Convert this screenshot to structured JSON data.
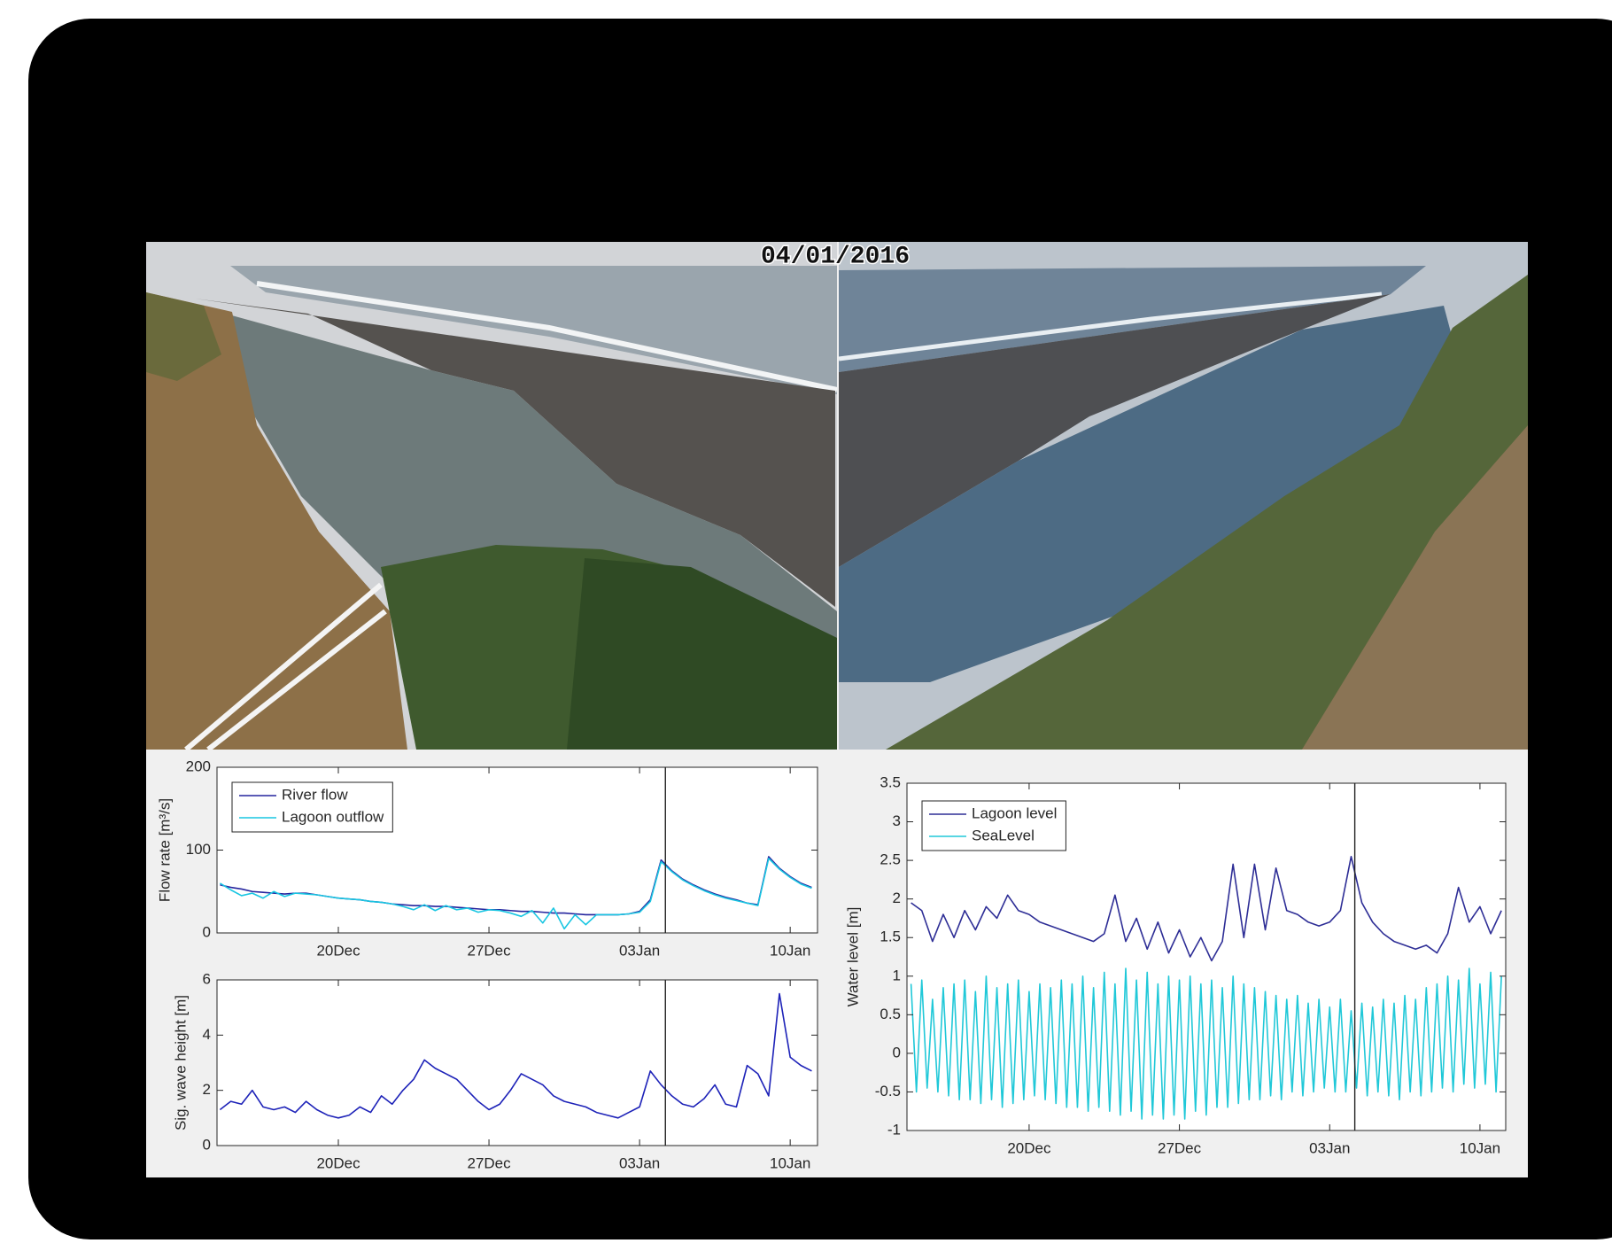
{
  "date_label": "04/01/2016",
  "chart_data": [
    {
      "type": "line",
      "ylabel": "Flow rate [m³/s]",
      "legend": "upper left",
      "xlim": [
        14.36,
        42.27
      ],
      "xticks": [
        {
          "value": 20,
          "label": "20Dec"
        },
        {
          "value": 27,
          "label": "27Dec"
        },
        {
          "value": 34,
          "label": "03Jan"
        },
        {
          "value": 41,
          "label": "10Jan"
        }
      ],
      "ylim": [
        0,
        200
      ],
      "yticks": [
        0,
        100,
        200
      ],
      "marker_x": 35.2,
      "x": [
        14.5,
        15,
        15.5,
        16,
        16.5,
        17,
        17.5,
        18,
        18.5,
        19,
        19.5,
        20,
        20.5,
        21,
        21.5,
        22,
        22.5,
        23,
        23.5,
        24,
        24.5,
        25,
        25.5,
        26,
        26.5,
        27,
        27.5,
        28,
        28.5,
        29,
        29.5,
        30,
        30.5,
        31,
        31.5,
        32,
        32.5,
        33,
        33.5,
        34,
        34.5,
        35,
        35.5,
        36,
        36.5,
        37,
        37.5,
        38,
        38.5,
        39,
        39.5,
        40,
        40.5,
        41,
        41.5,
        42
      ],
      "series": [
        {
          "name": "River flow",
          "color": "#25259e",
          "values": [
            58,
            55,
            53,
            50,
            49,
            48,
            47,
            48,
            48,
            46,
            44,
            42,
            41,
            40,
            38,
            37,
            35,
            34,
            33,
            33,
            32,
            32,
            31,
            30,
            29,
            28,
            28,
            27,
            26,
            26,
            25,
            24,
            24,
            23,
            22,
            22,
            22,
            22,
            23,
            26,
            40,
            88,
            75,
            65,
            58,
            52,
            47,
            43,
            40,
            36,
            34,
            92,
            78,
            68,
            60,
            55
          ]
        },
        {
          "name": "Lagoon outflow",
          "color": "#19c6e2",
          "values": [
            60,
            52,
            45,
            48,
            42,
            50,
            44,
            48,
            47,
            46,
            44,
            42,
            41,
            40,
            38,
            37,
            35,
            32,
            28,
            34,
            27,
            33,
            28,
            30,
            25,
            28,
            27,
            24,
            20,
            27,
            12,
            30,
            5,
            22,
            10,
            22,
            22,
            22,
            23,
            25,
            38,
            86,
            74,
            64,
            57,
            51,
            46,
            42,
            39,
            36,
            33,
            90,
            77,
            67,
            59,
            54
          ]
        }
      ]
    },
    {
      "type": "line",
      "ylabel": "Sig. wave height [m]",
      "xlim": [
        14.36,
        42.27
      ],
      "xticks": [
        {
          "value": 20,
          "label": "20Dec"
        },
        {
          "value": 27,
          "label": "27Dec"
        },
        {
          "value": 34,
          "label": "03Jan"
        },
        {
          "value": 41,
          "label": "10Jan"
        }
      ],
      "ylim": [
        0,
        6
      ],
      "yticks": [
        0,
        2,
        4,
        6
      ],
      "marker_x": 35.2,
      "x": [
        14.5,
        15,
        15.5,
        16,
        16.5,
        17,
        17.5,
        18,
        18.5,
        19,
        19.5,
        20,
        20.5,
        21,
        21.5,
        22,
        22.5,
        23,
        23.5,
        24,
        24.5,
        25,
        25.5,
        26,
        26.5,
        27,
        27.5,
        28,
        28.5,
        29,
        29.5,
        30,
        30.5,
        31,
        31.5,
        32,
        32.5,
        33,
        33.5,
        34,
        34.5,
        35,
        35.5,
        36,
        36.5,
        37,
        37.5,
        38,
        38.5,
        39,
        39.5,
        40,
        40.5,
        41,
        41.5,
        42
      ],
      "series": [
        {
          "color": "#1d22b8",
          "values": [
            1.3,
            1.6,
            1.5,
            2.0,
            1.4,
            1.3,
            1.4,
            1.2,
            1.6,
            1.3,
            1.1,
            1.0,
            1.1,
            1.4,
            1.2,
            1.8,
            1.5,
            2.0,
            2.4,
            3.1,
            2.8,
            2.6,
            2.4,
            2.0,
            1.6,
            1.3,
            1.5,
            2.0,
            2.6,
            2.4,
            2.2,
            1.8,
            1.6,
            1.5,
            1.4,
            1.2,
            1.1,
            1.0,
            1.2,
            1.4,
            2.7,
            2.2,
            1.8,
            1.5,
            1.4,
            1.7,
            2.2,
            1.5,
            1.4,
            2.9,
            2.6,
            1.8,
            5.5,
            3.2,
            2.9,
            2.7
          ]
        }
      ]
    },
    {
      "type": "line",
      "ylabel": "Water level [m]",
      "legend": "upper left",
      "xlim": [
        14.31,
        42.2
      ],
      "xticks": [
        {
          "value": 20,
          "label": "20Dec"
        },
        {
          "value": 27,
          "label": "27Dec"
        },
        {
          "value": 34,
          "label": "03Jan"
        },
        {
          "value": 41,
          "label": "10Jan"
        }
      ],
      "ylim": [
        -1,
        3.5
      ],
      "yticks": [
        -1,
        -0.5,
        0,
        0.5,
        1,
        1.5,
        2,
        2.5,
        3,
        3.5
      ],
      "marker_x": 35.17,
      "series": [
        {
          "name": "Lagoon level",
          "color": "#2e2e96",
          "x": [
            14.5,
            15,
            15.5,
            16,
            16.5,
            17,
            17.5,
            18,
            18.5,
            19,
            19.5,
            20,
            20.5,
            21,
            21.5,
            22,
            22.5,
            23,
            23.5,
            24,
            24.5,
            25,
            25.5,
            26,
            26.5,
            27,
            27.5,
            28,
            28.5,
            29,
            29.5,
            30,
            30.5,
            31,
            31.5,
            32,
            32.5,
            33,
            33.5,
            34,
            34.5,
            35,
            35.5,
            36,
            36.5,
            37,
            37.5,
            38,
            38.5,
            39,
            39.5,
            40,
            40.5,
            41,
            41.5,
            42
          ],
          "values": [
            1.95,
            1.85,
            1.45,
            1.8,
            1.5,
            1.85,
            1.6,
            1.9,
            1.75,
            2.05,
            1.85,
            1.8,
            1.7,
            1.65,
            1.6,
            1.55,
            1.5,
            1.45,
            1.55,
            2.05,
            1.45,
            1.75,
            1.35,
            1.7,
            1.3,
            1.6,
            1.25,
            1.5,
            1.2,
            1.45,
            2.45,
            1.5,
            2.45,
            1.6,
            2.4,
            1.85,
            1.8,
            1.7,
            1.65,
            1.7,
            1.85,
            2.55,
            1.95,
            1.7,
            1.55,
            1.45,
            1.4,
            1.35,
            1.4,
            1.3,
            1.55,
            2.15,
            1.7,
            1.9,
            1.55,
            1.85
          ]
        },
        {
          "name": "SeaLevel",
          "color": "#20c8d8",
          "x": [
            14.5,
            14.75,
            15,
            15.25,
            15.5,
            15.75,
            16,
            16.25,
            16.5,
            16.75,
            17,
            17.25,
            17.5,
            17.75,
            18,
            18.25,
            18.5,
            18.75,
            19,
            19.25,
            19.5,
            19.75,
            20,
            20.25,
            20.5,
            20.75,
            21,
            21.25,
            21.5,
            21.75,
            22,
            22.25,
            22.5,
            22.75,
            23,
            23.25,
            23.5,
            23.75,
            24,
            24.25,
            24.5,
            24.75,
            25,
            25.25,
            25.5,
            25.75,
            26,
            26.25,
            26.5,
            26.75,
            27,
            27.25,
            27.5,
            27.75,
            28,
            28.25,
            28.5,
            28.75,
            29,
            29.25,
            29.5,
            29.75,
            30,
            30.25,
            30.5,
            30.75,
            31,
            31.25,
            31.5,
            31.75,
            32,
            32.25,
            32.5,
            32.75,
            33,
            33.25,
            33.5,
            33.75,
            34,
            34.25,
            34.5,
            34.75,
            35,
            35.25,
            35.5,
            35.75,
            36,
            36.25,
            36.5,
            36.75,
            37,
            37.25,
            37.5,
            37.75,
            38,
            38.25,
            38.5,
            38.75,
            39,
            39.25,
            39.5,
            39.75,
            40,
            40.25,
            40.5,
            40.75,
            41,
            41.25,
            41.5,
            41.75,
            42
          ],
          "values": [
            0.9,
            -0.5,
            0.95,
            -0.45,
            0.7,
            -0.5,
            0.85,
            -0.55,
            0.9,
            -0.6,
            0.95,
            -0.6,
            0.8,
            -0.65,
            1.0,
            -0.6,
            0.85,
            -0.7,
            0.9,
            -0.65,
            0.95,
            -0.6,
            0.8,
            -0.55,
            0.9,
            -0.6,
            0.85,
            -0.65,
            0.95,
            -0.7,
            0.9,
            -0.7,
            1.0,
            -0.75,
            0.85,
            -0.7,
            1.05,
            -0.75,
            0.9,
            -0.8,
            1.1,
            -0.75,
            0.95,
            -0.85,
            1.05,
            -0.8,
            0.9,
            -0.85,
            1.0,
            -0.8,
            0.95,
            -0.85,
            1.0,
            -0.75,
            0.9,
            -0.8,
            0.95,
            -0.7,
            0.85,
            -0.7,
            1.0,
            -0.65,
            0.9,
            -0.6,
            0.85,
            -0.6,
            0.8,
            -0.55,
            0.75,
            -0.6,
            0.7,
            -0.5,
            0.75,
            -0.55,
            0.65,
            -0.5,
            0.7,
            -0.45,
            0.6,
            -0.5,
            0.7,
            -0.5,
            0.55,
            -0.45,
            0.65,
            -0.55,
            0.6,
            -0.5,
            0.7,
            -0.55,
            0.65,
            -0.6,
            0.75,
            -0.5,
            0.7,
            -0.55,
            0.85,
            -0.5,
            0.9,
            -0.45,
            1.0,
            -0.5,
            0.95,
            -0.4,
            1.1,
            -0.45,
            0.9,
            -0.4,
            1.05,
            -0.5,
            1.0
          ]
        }
      ]
    }
  ]
}
